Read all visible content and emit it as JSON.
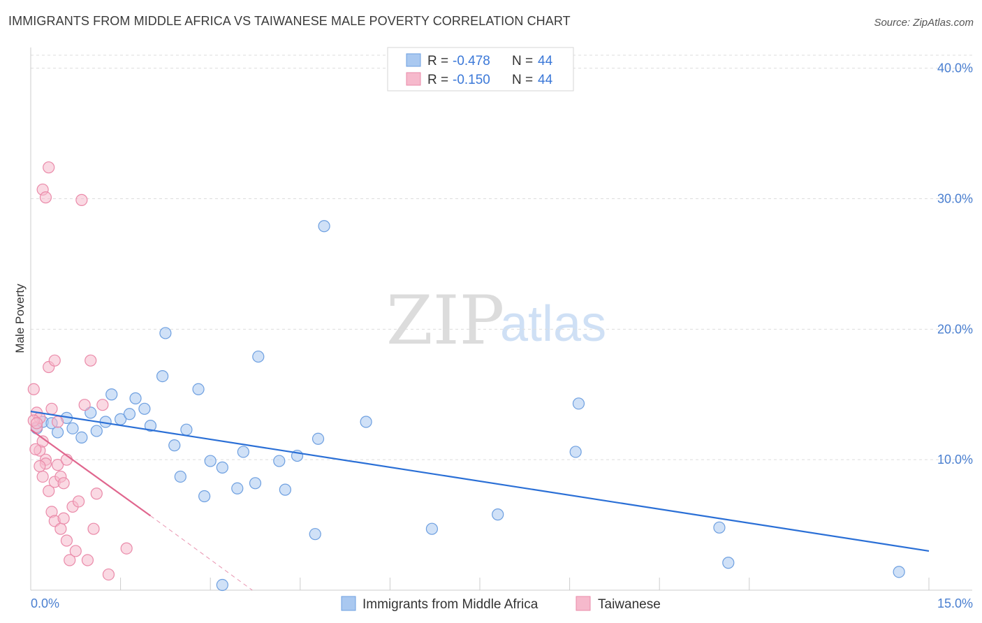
{
  "header": {
    "title": "IMMIGRANTS FROM MIDDLE AFRICA VS TAIWANESE MALE POVERTY CORRELATION CHART",
    "source": "Source: ZipAtlas.com"
  },
  "watermark": {
    "zip": "ZIP",
    "atlas": "atlas"
  },
  "legend_top": [
    {
      "r_label": "R = ",
      "r_value": "-0.478",
      "n_label": "N = ",
      "n_value": "44",
      "color": "#a9c8f0",
      "stroke": "#6d9fe0"
    },
    {
      "r_label": "R = ",
      "r_value": "-0.150",
      "n_label": "N = ",
      "n_value": "44",
      "color": "#f6b9cc",
      "stroke": "#ea8aa9"
    }
  ],
  "chart_data": {
    "type": "scatter",
    "title": "IMMIGRANTS FROM MIDDLE AFRICA VS TAIWANESE MALE POVERTY CORRELATION CHART",
    "xlabel": "",
    "ylabel": "Male Poverty",
    "xlim": [
      0,
      15
    ],
    "ylim": [
      0,
      41
    ],
    "x_tick_labels": [
      {
        "value": 0,
        "label": "0.0%"
      },
      {
        "value": 15,
        "label": "15.0%"
      }
    ],
    "y_tick_labels": [
      {
        "value": 10,
        "label": "10.0%"
      },
      {
        "value": 20,
        "label": "20.0%"
      },
      {
        "value": 30,
        "label": "30.0%"
      },
      {
        "value": 40,
        "label": "40.0%"
      }
    ],
    "x_minor_ticks": [
      1.5,
      3.0,
      4.5,
      6.0,
      7.5,
      9.0,
      10.5,
      12.0
    ],
    "series": [
      {
        "name": "Immigrants from Middle Africa",
        "color": "#a9c8f0",
        "stroke": "#6d9fe0",
        "line_color": "#2a6fd6",
        "trend": {
          "x": [
            0.0,
            15.0
          ],
          "y": [
            13.7,
            3.0
          ],
          "dashed_to": null
        },
        "points": [
          [
            0.1,
            12.4
          ],
          [
            0.2,
            12.9
          ],
          [
            0.35,
            12.8
          ],
          [
            0.45,
            12.1
          ],
          [
            0.6,
            13.2
          ],
          [
            0.7,
            12.4
          ],
          [
            0.85,
            11.7
          ],
          [
            1.0,
            13.6
          ],
          [
            1.1,
            12.2
          ],
          [
            1.25,
            12.9
          ],
          [
            1.35,
            15.0
          ],
          [
            1.5,
            13.1
          ],
          [
            1.65,
            13.5
          ],
          [
            1.75,
            14.7
          ],
          [
            1.9,
            13.9
          ],
          [
            2.0,
            12.6
          ],
          [
            2.2,
            16.4
          ],
          [
            2.25,
            19.7
          ],
          [
            2.4,
            11.1
          ],
          [
            2.5,
            8.7
          ],
          [
            2.6,
            12.3
          ],
          [
            2.8,
            15.4
          ],
          [
            2.9,
            7.2
          ],
          [
            3.0,
            9.9
          ],
          [
            3.2,
            9.4
          ],
          [
            3.45,
            7.8
          ],
          [
            3.55,
            10.6
          ],
          [
            3.75,
            8.2
          ],
          [
            3.8,
            17.9
          ],
          [
            4.15,
            9.9
          ],
          [
            4.25,
            7.7
          ],
          [
            4.45,
            10.3
          ],
          [
            4.75,
            4.3
          ],
          [
            4.8,
            11.6
          ],
          [
            4.9,
            27.9
          ],
          [
            5.6,
            12.9
          ],
          [
            6.7,
            4.7
          ],
          [
            7.8,
            5.8
          ],
          [
            9.1,
            10.6
          ],
          [
            9.15,
            14.3
          ],
          [
            11.5,
            4.8
          ],
          [
            11.65,
            2.1
          ],
          [
            14.5,
            1.4
          ],
          [
            3.2,
            0.4
          ]
        ]
      },
      {
        "name": "Taiwanese",
        "color": "#f6b9cc",
        "stroke": "#ea8aa9",
        "line_color": "#e0668e",
        "trend": {
          "x": [
            0.0,
            2.0
          ],
          "y": [
            12.3,
            5.7
          ],
          "dashed_to": {
            "x": 3.7,
            "y": 0.0
          }
        },
        "points": [
          [
            0.05,
            15.4
          ],
          [
            0.1,
            13.6
          ],
          [
            0.1,
            12.5
          ],
          [
            0.15,
            10.7
          ],
          [
            0.15,
            13.2
          ],
          [
            0.2,
            11.4
          ],
          [
            0.2,
            8.7
          ],
          [
            0.25,
            10.0
          ],
          [
            0.25,
            9.7
          ],
          [
            0.3,
            7.6
          ],
          [
            0.3,
            17.1
          ],
          [
            0.35,
            13.9
          ],
          [
            0.35,
            6.0
          ],
          [
            0.4,
            17.6
          ],
          [
            0.4,
            8.3
          ],
          [
            0.4,
            5.3
          ],
          [
            0.45,
            9.6
          ],
          [
            0.45,
            12.9
          ],
          [
            0.5,
            8.7
          ],
          [
            0.5,
            4.7
          ],
          [
            0.55,
            5.5
          ],
          [
            0.55,
            8.2
          ],
          [
            0.6,
            3.8
          ],
          [
            0.6,
            10.0
          ],
          [
            0.65,
            2.3
          ],
          [
            0.7,
            6.4
          ],
          [
            0.75,
            3.0
          ],
          [
            0.8,
            6.8
          ],
          [
            0.9,
            14.2
          ],
          [
            0.95,
            2.3
          ],
          [
            1.0,
            17.6
          ],
          [
            1.05,
            4.7
          ],
          [
            1.1,
            7.4
          ],
          [
            1.2,
            14.2
          ],
          [
            1.3,
            1.2
          ],
          [
            1.6,
            3.2
          ],
          [
            0.2,
            30.7
          ],
          [
            0.25,
            30.1
          ],
          [
            0.3,
            32.4
          ],
          [
            0.85,
            29.9
          ],
          [
            0.08,
            10.8
          ],
          [
            0.15,
            9.5
          ],
          [
            0.05,
            13.0
          ],
          [
            0.1,
            12.8
          ]
        ]
      }
    ]
  }
}
